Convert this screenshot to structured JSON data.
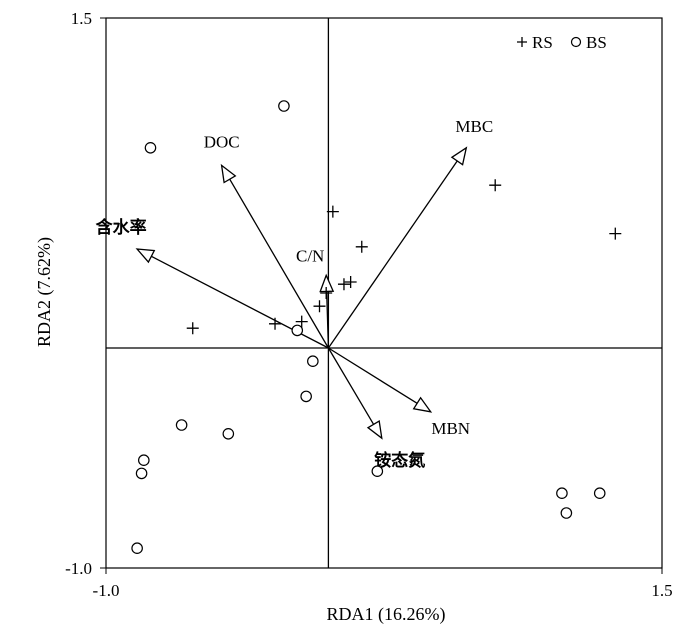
{
  "chart_data": {
    "type": "scatter",
    "title": "",
    "xlabel": "RDA1 (16.26%)",
    "ylabel": "RDA2 (7.62%)",
    "xlim": [
      -1.0,
      1.5
    ],
    "ylim": [
      -1.0,
      1.5
    ],
    "x_tick_labels": [
      "-1.0",
      "1.5"
    ],
    "y_tick_labels": [
      "1.5",
      "-1.0"
    ],
    "grid": false,
    "zero_lines": true,
    "legend_position": "top-right",
    "series": [
      {
        "name": "RS",
        "marker": "plus",
        "points": [
          [
            -0.61,
            0.09
          ],
          [
            -0.24,
            0.11
          ],
          [
            -0.12,
            0.12
          ],
          [
            -0.04,
            0.19
          ],
          [
            -0.01,
            0.25
          ],
          [
            0.02,
            0.62
          ],
          [
            0.07,
            0.29
          ],
          [
            0.1,
            0.3
          ],
          [
            0.15,
            0.46
          ],
          [
            0.75,
            0.74
          ],
          [
            1.29,
            0.52
          ]
        ]
      },
      {
        "name": "BS",
        "marker": "circle",
        "points": [
          [
            -0.2,
            1.1
          ],
          [
            -0.8,
            0.91
          ],
          [
            -0.14,
            0.08
          ],
          [
            -0.07,
            -0.06
          ],
          [
            -0.1,
            -0.22
          ],
          [
            -0.66,
            -0.35
          ],
          [
            -0.45,
            -0.39
          ],
          [
            -0.83,
            -0.51
          ],
          [
            -0.84,
            -0.57
          ],
          [
            -0.86,
            -0.91
          ],
          [
            0.22,
            -0.56
          ],
          [
            1.05,
            -0.66
          ],
          [
            1.22,
            -0.66
          ],
          [
            1.07,
            -0.75
          ]
        ]
      }
    ],
    "vectors": [
      {
        "label": "DOC",
        "x": -0.48,
        "y": 0.83
      },
      {
        "label": "含水率",
        "x": -0.86,
        "y": 0.45
      },
      {
        "label": "C/N",
        "x": -0.01,
        "y": 0.33
      },
      {
        "label": "MBC",
        "x": 0.62,
        "y": 0.91
      },
      {
        "label": "MBN",
        "x": 0.46,
        "y": -0.29
      },
      {
        "label": "铵态氮",
        "x": 0.24,
        "y": -0.41
      }
    ]
  }
}
